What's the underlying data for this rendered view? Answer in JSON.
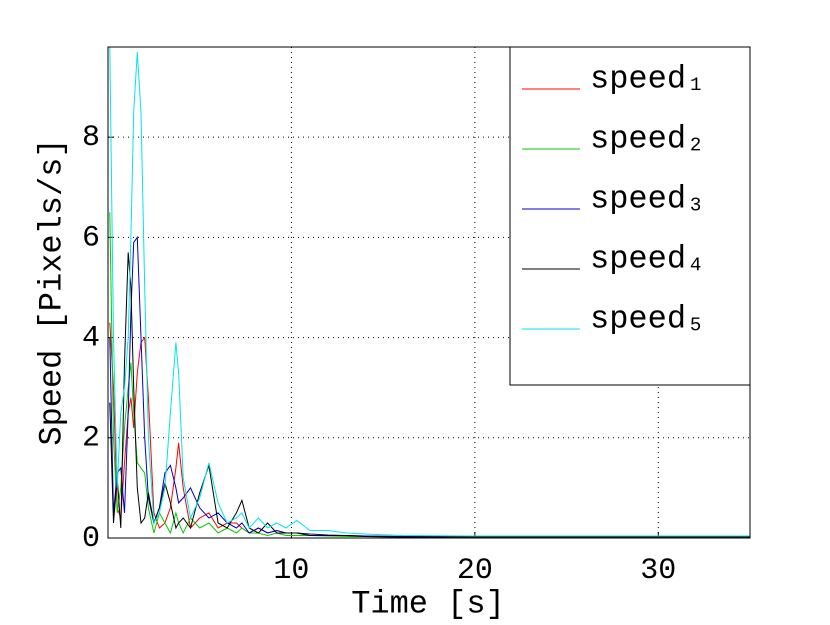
{
  "chart_data": {
    "type": "line",
    "x_label": "Time [s]",
    "y_label": "Speed [Pixels/s]",
    "x": [
      0.1,
      0.3,
      0.5,
      0.7,
      0.9,
      1.1,
      1.25,
      1.4,
      1.6,
      1.8,
      2.0,
      2.2,
      2.5,
      2.8,
      3.1,
      3.4,
      3.7,
      3.85,
      4.1,
      4.5,
      5.0,
      5.5,
      6.0,
      6.5,
      7.0,
      7.3,
      7.7,
      8.2,
      8.7,
      9.2,
      9.7,
      10.3,
      11,
      12,
      13,
      14,
      16,
      20,
      25,
      30,
      35
    ],
    "series": [
      {
        "name": "speed₁",
        "color": "#ff0000",
        "values": [
          4.3,
          3.0,
          0.6,
          0.4,
          1.5,
          2.5,
          2.8,
          2.2,
          3.3,
          3.9,
          4.0,
          2.8,
          0.5,
          0.2,
          0.3,
          0.6,
          1.4,
          1.9,
          1.0,
          0.2,
          0.4,
          0.5,
          0.2,
          0.3,
          0.3,
          0.2,
          0.1,
          0.2,
          0.1,
          0.15,
          0.1,
          0.1,
          0.05,
          0.05,
          0.05,
          0.04,
          0.03,
          0.02,
          0.02,
          0.02,
          0.02
        ]
      },
      {
        "name": "speed₂",
        "color": "#00cc00",
        "values": [
          6.5,
          2.0,
          0.5,
          1.0,
          2.2,
          3.0,
          3.5,
          2.5,
          1.5,
          1.4,
          1.3,
          0.6,
          0.1,
          0.5,
          0.3,
          0.1,
          0.5,
          0.3,
          0.1,
          0.4,
          0.2,
          0.3,
          0.1,
          0.2,
          0.1,
          0.2,
          0.1,
          0.1,
          0.05,
          0.1,
          0.05,
          0.05,
          0.05,
          0.04,
          0.03,
          0.03,
          0.02,
          0.02,
          0.02,
          0.02,
          0.02
        ]
      },
      {
        "name": "speed₃",
        "color": "#0000cc",
        "values": [
          4.0,
          0.5,
          1.3,
          1.4,
          0.5,
          2.5,
          4.5,
          5.9,
          6.0,
          4.0,
          2.0,
          0.8,
          0.3,
          0.6,
          1.3,
          1.45,
          1.0,
          0.7,
          0.8,
          1.0,
          0.6,
          0.4,
          0.5,
          0.3,
          0.2,
          0.3,
          0.1,
          0.2,
          0.1,
          0.15,
          0.1,
          0.1,
          0.08,
          0.06,
          0.05,
          0.04,
          0.03,
          0.03,
          0.02,
          0.02,
          0.02
        ]
      },
      {
        "name": "speed₄",
        "color": "#000000",
        "values": [
          2.7,
          0.3,
          1.2,
          0.2,
          3.5,
          5.7,
          5.0,
          3.0,
          1.0,
          0.3,
          0.4,
          0.9,
          0.3,
          0.6,
          1.1,
          0.7,
          0.2,
          0.3,
          0.4,
          0.2,
          0.9,
          1.45,
          0.3,
          0.2,
          0.5,
          0.75,
          0.2,
          0.1,
          0.3,
          0.1,
          0.1,
          0.1,
          0.05,
          0.05,
          0.05,
          0.03,
          0.02,
          0.02,
          0.02,
          0.02,
          0.02
        ]
      },
      {
        "name": "speed₅",
        "color": "#00e5ee",
        "values": [
          9.8,
          4.0,
          1.0,
          2.5,
          3.0,
          4.0,
          6.0,
          8.5,
          9.7,
          8.5,
          5.0,
          2.0,
          0.3,
          0.5,
          1.0,
          2.5,
          3.9,
          3.3,
          1.2,
          0.4,
          0.8,
          1.5,
          0.7,
          0.3,
          0.4,
          0.5,
          0.2,
          0.4,
          0.2,
          0.3,
          0.2,
          0.35,
          0.15,
          0.15,
          0.1,
          0.08,
          0.05,
          0.04,
          0.04,
          0.04,
          0.04
        ]
      }
    ],
    "xlim": [
      0,
      35
    ],
    "ylim": [
      0,
      9.8
    ],
    "xticks": [
      10,
      20,
      30
    ],
    "yticks": [
      0,
      2,
      4,
      6,
      8
    ],
    "grid": true,
    "legend": "northeast"
  }
}
